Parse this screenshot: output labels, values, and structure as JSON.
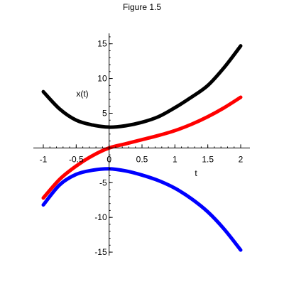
{
  "chart_data": {
    "type": "line",
    "title": "Figure 1.5",
    "xlabel": "t",
    "ylabel": "x(t)",
    "xlim": [
      -1,
      2
    ],
    "ylim": [
      -15.5,
      16.5
    ],
    "grid": false,
    "x_ticks": [
      -1,
      -0.5,
      0,
      0.5,
      1,
      1.5,
      2
    ],
    "x_tick_labels": [
      "-1",
      "-0.5",
      "0",
      "0.5",
      "1",
      "1.5",
      "2"
    ],
    "y_ticks": [
      -15,
      -10,
      -5,
      0,
      5,
      10,
      15
    ],
    "y_tick_labels": [
      "-15",
      "-10",
      "-5",
      "0",
      "5",
      "10",
      "15"
    ],
    "colors": {
      "axis": "#000000",
      "background": "#ffffff"
    },
    "series": [
      {
        "color": "#000000",
        "points": [
          [
            -1,
            8.1
          ],
          [
            -0.75,
            5.6
          ],
          [
            -0.5,
            4.0
          ],
          [
            -0.25,
            3.3
          ],
          [
            0,
            3.0
          ],
          [
            0.25,
            3.2
          ],
          [
            0.5,
            3.7
          ],
          [
            0.75,
            4.5
          ],
          [
            1,
            5.8
          ],
          [
            1.25,
            7.3
          ],
          [
            1.5,
            9.0
          ],
          [
            1.75,
            11.6
          ],
          [
            2,
            14.7
          ]
        ]
      },
      {
        "color": "#ff0000",
        "points": [
          [
            -1,
            -7.2
          ],
          [
            -0.75,
            -4.5
          ],
          [
            -0.5,
            -2.6
          ],
          [
            -0.25,
            -1.1
          ],
          [
            0,
            0.0
          ],
          [
            0.25,
            0.6
          ],
          [
            0.5,
            1.2
          ],
          [
            0.75,
            1.8
          ],
          [
            1,
            2.5
          ],
          [
            1.25,
            3.4
          ],
          [
            1.5,
            4.5
          ],
          [
            1.75,
            5.8
          ],
          [
            2,
            7.3
          ]
        ]
      },
      {
        "color": "#0000ff",
        "points": [
          [
            -1,
            -8.2
          ],
          [
            -0.75,
            -5.3
          ],
          [
            -0.5,
            -3.8
          ],
          [
            -0.25,
            -3.2
          ],
          [
            0,
            -3.0
          ],
          [
            0.25,
            -3.3
          ],
          [
            0.5,
            -3.9
          ],
          [
            0.75,
            -4.7
          ],
          [
            1,
            -5.8
          ],
          [
            1.25,
            -7.3
          ],
          [
            1.5,
            -9.2
          ],
          [
            1.75,
            -11.7
          ],
          [
            2,
            -14.7
          ]
        ]
      }
    ]
  }
}
